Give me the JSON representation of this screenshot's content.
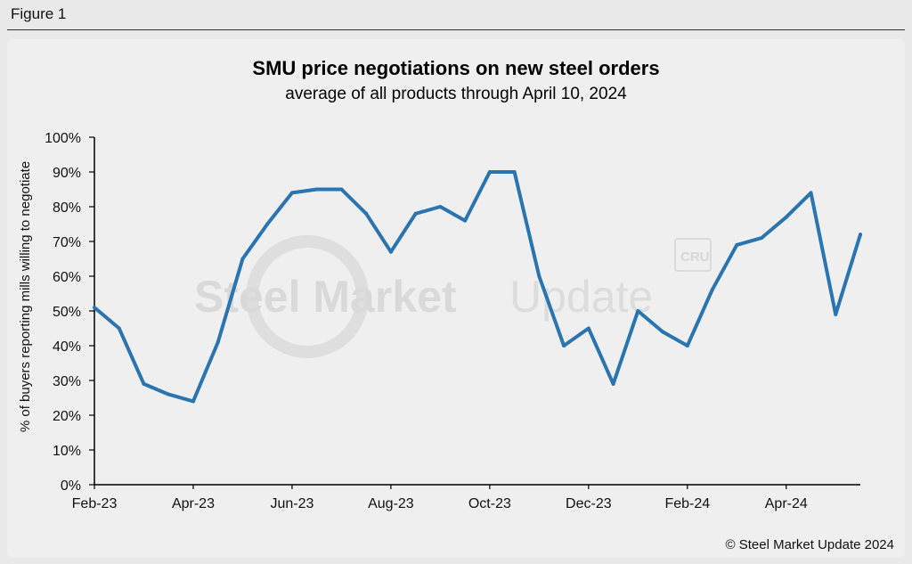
{
  "figure_label": "Figure 1",
  "copyright": "© Steel Market Update 2024",
  "watermark": {
    "bold": "Steel Market",
    "light": "Update",
    "badge": "CRU"
  },
  "chart_data": {
    "type": "line",
    "title": "SMU price negotiations on new steel orders",
    "subtitle": "average of all products through April 10, 2024",
    "xlabel": "",
    "ylabel": "% of buyers reporting mills willing to negotiate",
    "ylim": [
      0,
      100
    ],
    "yticks": [
      "0%",
      "10%",
      "20%",
      "30%",
      "40%",
      "50%",
      "60%",
      "70%",
      "80%",
      "90%",
      "100%"
    ],
    "xticks": [
      {
        "label": "Feb-23",
        "index": 0
      },
      {
        "label": "Apr-23",
        "index": 4
      },
      {
        "label": "Jun-23",
        "index": 8
      },
      {
        "label": "Aug-23",
        "index": 12
      },
      {
        "label": "Oct-23",
        "index": 16
      },
      {
        "label": "Dec-23",
        "index": 20
      },
      {
        "label": "Feb-24",
        "index": 24
      },
      {
        "label": "Apr-24",
        "index": 28
      }
    ],
    "line_color": "#2a74b0",
    "grid": false,
    "legend": "none",
    "values": [
      51,
      45,
      29,
      26,
      24,
      41,
      65,
      75,
      84,
      85,
      85,
      78,
      67,
      78,
      80,
      76,
      90,
      90,
      60,
      40,
      45,
      29,
      50,
      44,
      40,
      56,
      69,
      71,
      77,
      84,
      49,
      72
    ]
  }
}
